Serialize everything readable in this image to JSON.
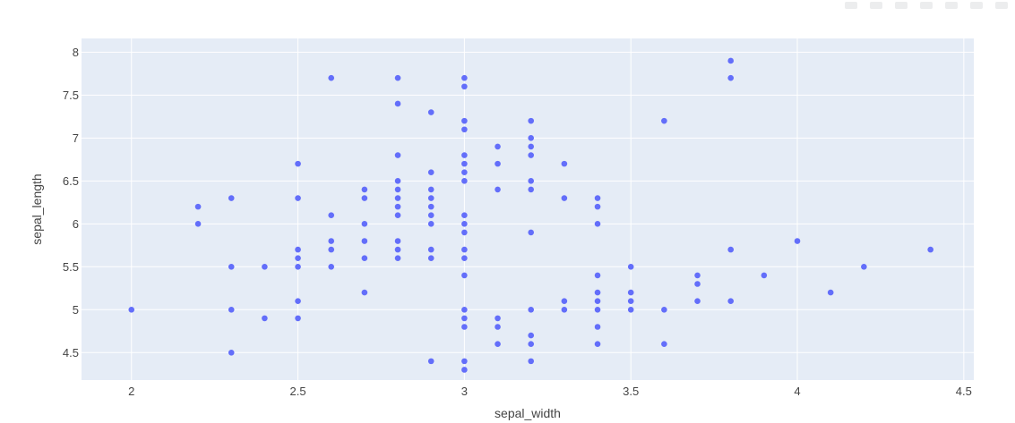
{
  "chart_data": {
    "type": "scatter",
    "title": "",
    "xlabel": "sepal_width",
    "ylabel": "sepal_length",
    "xlim": [
      1.85,
      4.53
    ],
    "ylim": [
      4.18,
      8.16
    ],
    "xticks": [
      2,
      2.5,
      3,
      3.5,
      4,
      4.5
    ],
    "yticks": [
      4.5,
      5,
      5.5,
      6,
      6.5,
      7,
      7.5,
      8
    ],
    "xtick_labels": [
      "2",
      "2.5",
      "3",
      "3.5",
      "4",
      "4.5"
    ],
    "ytick_labels": [
      "4.5",
      "5",
      "5.5",
      "6",
      "6.5",
      "7",
      "7.5",
      "8"
    ],
    "grid": true,
    "colors": {
      "plot_bg": "#E5ECF6",
      "marker": "#636EFA",
      "grid": "#FFFFFF"
    },
    "points": [
      [
        2.0,
        5.0
      ],
      [
        2.2,
        6.2
      ],
      [
        2.2,
        6.0
      ],
      [
        2.3,
        6.3
      ],
      [
        2.3,
        5.5
      ],
      [
        2.3,
        5.0
      ],
      [
        2.3,
        4.5
      ],
      [
        2.4,
        5.5
      ],
      [
        2.4,
        4.9
      ],
      [
        2.5,
        6.7
      ],
      [
        2.5,
        6.3
      ],
      [
        2.5,
        5.7
      ],
      [
        2.5,
        5.6
      ],
      [
        2.5,
        5.5
      ],
      [
        2.5,
        5.1
      ],
      [
        2.5,
        4.9
      ],
      [
        2.6,
        7.7
      ],
      [
        2.6,
        6.1
      ],
      [
        2.6,
        5.8
      ],
      [
        2.6,
        5.7
      ],
      [
        2.6,
        5.5
      ],
      [
        2.7,
        6.4
      ],
      [
        2.7,
        6.3
      ],
      [
        2.7,
        6.0
      ],
      [
        2.7,
        5.8
      ],
      [
        2.7,
        5.6
      ],
      [
        2.7,
        5.2
      ],
      [
        2.8,
        7.7
      ],
      [
        2.8,
        7.4
      ],
      [
        2.8,
        6.8
      ],
      [
        2.8,
        6.5
      ],
      [
        2.8,
        6.4
      ],
      [
        2.8,
        6.3
      ],
      [
        2.8,
        6.2
      ],
      [
        2.8,
        6.1
      ],
      [
        2.8,
        5.8
      ],
      [
        2.8,
        5.7
      ],
      [
        2.8,
        5.6
      ],
      [
        2.9,
        7.3
      ],
      [
        2.9,
        6.6
      ],
      [
        2.9,
        6.4
      ],
      [
        2.9,
        6.3
      ],
      [
        2.9,
        6.2
      ],
      [
        2.9,
        6.1
      ],
      [
        2.9,
        6.0
      ],
      [
        2.9,
        5.7
      ],
      [
        2.9,
        5.6
      ],
      [
        2.9,
        4.4
      ],
      [
        3.0,
        7.7
      ],
      [
        3.0,
        7.6
      ],
      [
        3.0,
        7.2
      ],
      [
        3.0,
        7.1
      ],
      [
        3.0,
        6.8
      ],
      [
        3.0,
        6.7
      ],
      [
        3.0,
        6.6
      ],
      [
        3.0,
        6.5
      ],
      [
        3.0,
        6.1
      ],
      [
        3.0,
        6.0
      ],
      [
        3.0,
        5.9
      ],
      [
        3.0,
        5.7
      ],
      [
        3.0,
        5.6
      ],
      [
        3.0,
        5.4
      ],
      [
        3.0,
        5.0
      ],
      [
        3.0,
        4.9
      ],
      [
        3.0,
        4.8
      ],
      [
        3.0,
        4.4
      ],
      [
        3.0,
        4.3
      ],
      [
        3.1,
        6.9
      ],
      [
        3.1,
        6.7
      ],
      [
        3.1,
        6.4
      ],
      [
        3.1,
        4.9
      ],
      [
        3.1,
        4.8
      ],
      [
        3.1,
        4.6
      ],
      [
        3.2,
        7.2
      ],
      [
        3.2,
        7.0
      ],
      [
        3.2,
        6.9
      ],
      [
        3.2,
        6.8
      ],
      [
        3.2,
        6.5
      ],
      [
        3.2,
        6.4
      ],
      [
        3.2,
        5.9
      ],
      [
        3.2,
        5.0
      ],
      [
        3.2,
        4.7
      ],
      [
        3.2,
        4.6
      ],
      [
        3.2,
        4.4
      ],
      [
        3.3,
        6.7
      ],
      [
        3.3,
        6.3
      ],
      [
        3.3,
        5.1
      ],
      [
        3.3,
        5.0
      ],
      [
        3.4,
        6.3
      ],
      [
        3.4,
        6.2
      ],
      [
        3.4,
        6.0
      ],
      [
        3.4,
        5.4
      ],
      [
        3.4,
        5.2
      ],
      [
        3.4,
        5.1
      ],
      [
        3.4,
        5.0
      ],
      [
        3.4,
        4.8
      ],
      [
        3.4,
        4.6
      ],
      [
        3.5,
        5.5
      ],
      [
        3.5,
        5.2
      ],
      [
        3.5,
        5.1
      ],
      [
        3.5,
        5.0
      ],
      [
        3.6,
        7.2
      ],
      [
        3.6,
        5.0
      ],
      [
        3.6,
        4.6
      ],
      [
        3.7,
        5.4
      ],
      [
        3.7,
        5.3
      ],
      [
        3.7,
        5.1
      ],
      [
        3.8,
        7.9
      ],
      [
        3.8,
        7.7
      ],
      [
        3.8,
        5.7
      ],
      [
        3.8,
        5.1
      ],
      [
        3.9,
        5.4
      ],
      [
        4.0,
        5.8
      ],
      [
        4.1,
        5.2
      ],
      [
        4.2,
        5.5
      ],
      [
        4.4,
        5.7
      ]
    ]
  }
}
